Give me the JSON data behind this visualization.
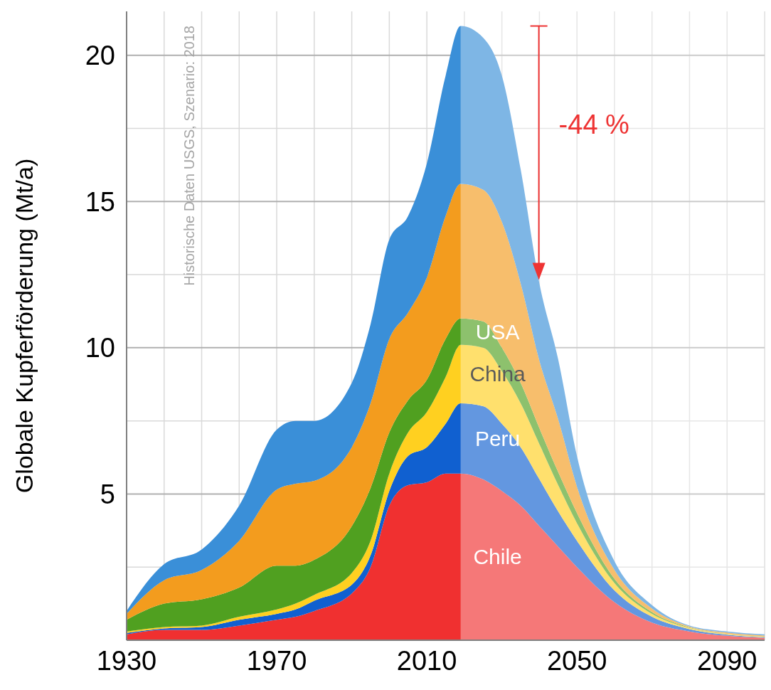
{
  "chart_data": {
    "type": "area",
    "stacked": true,
    "ylabel": "Globale Kupferförderung (Mt/a)",
    "x": [
      1930,
      1940,
      1950,
      1960,
      1970,
      1975,
      1980,
      1990,
      1995,
      2000,
      2005,
      2010,
      2015,
      2019,
      2025,
      2030,
      2035,
      2040,
      2045,
      2050,
      2060,
      2070,
      2080,
      2090,
      2100
    ],
    "series": [
      {
        "name": "Chile",
        "color": "#f03030",
        "values": [
          0.2,
          0.35,
          0.35,
          0.5,
          0.7,
          0.8,
          1.0,
          1.6,
          2.5,
          4.6,
          5.3,
          5.4,
          5.7,
          5.7,
          5.5,
          5.1,
          4.6,
          3.9,
          3.2,
          2.5,
          1.3,
          0.6,
          0.3,
          0.15,
          0.08
        ]
      },
      {
        "name": "Peru",
        "color": "#1060d0",
        "values": [
          0.05,
          0.05,
          0.1,
          0.2,
          0.2,
          0.25,
          0.35,
          0.3,
          0.4,
          0.5,
          1.0,
          1.2,
          1.7,
          2.4,
          2.5,
          2.3,
          2.0,
          1.6,
          1.2,
          0.9,
          0.4,
          0.2,
          0.08,
          0.04,
          0.02
        ]
      },
      {
        "name": "China",
        "color": "#ffd020",
        "values": [
          0.05,
          0.05,
          0.05,
          0.1,
          0.15,
          0.2,
          0.2,
          0.4,
          0.5,
          0.6,
          0.8,
          1.2,
          1.6,
          2.0,
          2.0,
          1.8,
          1.5,
          1.2,
          0.9,
          0.6,
          0.25,
          0.1,
          0.04,
          0.02,
          0.01
        ]
      },
      {
        "name": "USA",
        "color": "#50a020",
        "values": [
          0.4,
          0.8,
          0.9,
          1.0,
          1.5,
          1.3,
          1.2,
          1.6,
          1.8,
          1.4,
          1.1,
          1.1,
          1.3,
          0.9,
          0.9,
          0.8,
          0.7,
          0.55,
          0.45,
          0.35,
          0.15,
          0.06,
          0.02,
          0.01,
          0.01
        ]
      },
      {
        "color": "#f39c1e",
        "values": [
          0.2,
          0.8,
          1.0,
          1.6,
          2.6,
          2.8,
          2.7,
          2.7,
          2.9,
          3.2,
          3.0,
          3.5,
          4.2,
          4.6,
          4.5,
          4.3,
          3.4,
          2.3,
          1.8,
          0.9,
          0.3,
          0.12,
          0.03,
          0.04,
          0.04
        ]
      },
      {
        "color": "#3a8fd8",
        "values": [
          0.1,
          0.55,
          0.7,
          1.2,
          2.05,
          2.15,
          2.05,
          2.2,
          2.7,
          3.4,
          3.3,
          3.9,
          4.8,
          5.4,
          5.2,
          5.0,
          3.9,
          2.65,
          2.05,
          1.05,
          0.3,
          0.12,
          0.03,
          0.04,
          0.04
        ]
      }
    ],
    "xlim": [
      1930,
      2100
    ],
    "xticks": [
      1930,
      {
        "value": 1940,
        "label": null
      },
      {
        "value": 1950,
        "label": null
      },
      {
        "value": 1960,
        "label": null
      },
      1970,
      {
        "value": 1980,
        "label": null
      },
      {
        "value": 1990,
        "label": null
      },
      {
        "value": 2000,
        "label": null
      },
      2010,
      {
        "value": 2020,
        "label": null
      },
      {
        "value": 2030,
        "label": null
      },
      {
        "value": 2040,
        "label": null
      },
      2050,
      {
        "value": 2060,
        "label": null
      },
      {
        "value": 2070,
        "label": null
      },
      {
        "value": 2080,
        "label": null
      },
      2090,
      {
        "value": 2100,
        "label": null
      }
    ],
    "ylim": [
      0,
      21.5
    ],
    "yticks": [
      {
        "value": 2.5,
        "label": null
      },
      5,
      {
        "value": 7.5,
        "label": null
      },
      10,
      {
        "value": 12.5,
        "label": null
      },
      15,
      {
        "value": 17.5,
        "label": null
      },
      20
    ],
    "grid": true,
    "bands": [
      {
        "axis": "x",
        "from": 2019,
        "to": 2100,
        "color": "#ffffff"
      }
    ],
    "annotations": [
      "-44 %",
      "Historische Daten USGS, Szenario: 2018"
    ]
  }
}
